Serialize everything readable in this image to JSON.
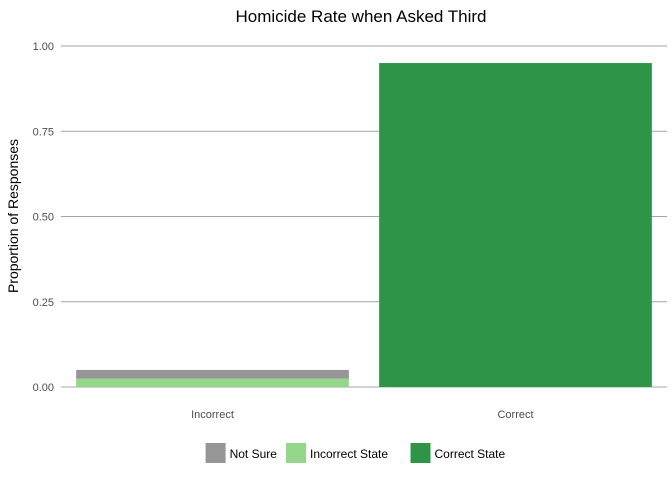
{
  "chart_data": {
    "type": "bar",
    "stacked": true,
    "title": "Homicide Rate when Asked Third",
    "xlabel": "",
    "ylabel": "Proportion of Responses",
    "ylim": [
      0,
      1
    ],
    "yticks": [
      0,
      0.25,
      0.5,
      0.75,
      1.0
    ],
    "ytick_labels": [
      "0.00",
      "0.25",
      "0.50",
      "0.75",
      "1.00"
    ],
    "categories": [
      "Incorrect",
      "Correct"
    ],
    "series": [
      {
        "name": "Correct State",
        "color": "#2e9548",
        "values": [
          0,
          0.95
        ]
      },
      {
        "name": "Incorrect State",
        "color": "#94d68a",
        "values": [
          0.025,
          0
        ]
      },
      {
        "name": "Not Sure",
        "color": "#969696",
        "values": [
          0.025,
          0
        ]
      }
    ],
    "legend_order": [
      "Not Sure",
      "Incorrect State",
      "Correct State"
    ],
    "legend_position": "bottom",
    "grid": true
  }
}
